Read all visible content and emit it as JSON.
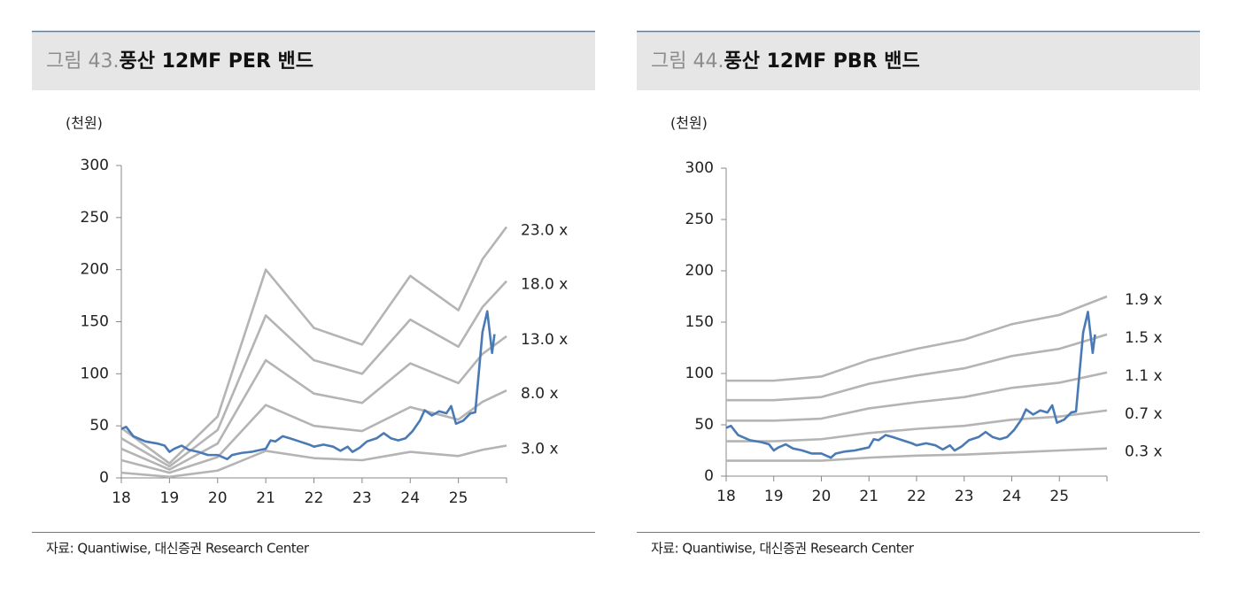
{
  "chart_data": [
    {
      "type": "line",
      "figure_label": "그림 43.",
      "title": "풍산 12MF PER 밴드",
      "unit": "(천원)",
      "xlim": [
        18,
        26
      ],
      "ylim": [
        0,
        300
      ],
      "xticks": [
        18,
        19,
        20,
        21,
        22,
        23,
        24,
        25
      ],
      "yticks": [
        0,
        50,
        100,
        150,
        200,
        250,
        300
      ],
      "band_color": "#b4b4b4",
      "price_color": "#4a7ab5",
      "bands": [
        {
          "name": "23.0 x",
          "x": [
            18,
            19,
            20,
            21,
            22,
            23,
            24,
            25,
            25.5,
            26
          ],
          "values": [
            48,
            14,
            59,
            200,
            144,
            128,
            194,
            161,
            210,
            241
          ]
        },
        {
          "name": "18.0 x",
          "x": [
            18,
            19,
            20,
            21,
            22,
            23,
            24,
            25,
            25.5,
            26
          ],
          "values": [
            38,
            11,
            46,
            156,
            113,
            100,
            152,
            126,
            164,
            189
          ]
        },
        {
          "name": "13.0 x",
          "x": [
            18,
            19,
            20,
            21,
            22,
            23,
            24,
            25,
            25.5,
            26
          ],
          "values": [
            28,
            8,
            33,
            113,
            81,
            72,
            110,
            91,
            119,
            136
          ]
        },
        {
          "name": "8.0 x",
          "x": [
            18,
            19,
            20,
            21,
            22,
            23,
            24,
            25,
            25.5,
            26
          ],
          "values": [
            17,
            5,
            20,
            70,
            50,
            45,
            68,
            56,
            73,
            84
          ]
        },
        {
          "name": "3.0 x",
          "x": [
            18,
            19,
            20,
            21,
            22,
            23,
            24,
            25,
            25.5,
            26
          ],
          "values": [
            5,
            1,
            7,
            26,
            19,
            17,
            25,
            21,
            27,
            31
          ]
        }
      ],
      "price": {
        "x": [
          18,
          18.1,
          18.25,
          18.5,
          18.75,
          18.9,
          19.0,
          19.1,
          19.25,
          19.4,
          19.6,
          19.8,
          20.0,
          20.1,
          20.2,
          20.3,
          20.5,
          20.7,
          20.9,
          21.0,
          21.1,
          21.2,
          21.35,
          21.5,
          21.7,
          21.9,
          22.0,
          22.2,
          22.4,
          22.55,
          22.7,
          22.8,
          22.95,
          23.1,
          23.3,
          23.45,
          23.6,
          23.75,
          23.9,
          24.05,
          24.2,
          24.3,
          24.45,
          24.6,
          24.75,
          24.85,
          24.95,
          25.1,
          25.25,
          25.35,
          25.5,
          25.6,
          25.7,
          25.75
        ],
        "values": [
          47,
          49,
          40,
          35,
          33,
          31,
          25,
          28,
          31,
          27,
          25,
          22,
          22,
          20,
          18,
          22,
          24,
          25,
          27,
          28,
          36,
          35,
          40,
          38,
          35,
          32,
          30,
          32,
          30,
          26,
          30,
          25,
          29,
          35,
          38,
          43,
          38,
          36,
          38,
          45,
          55,
          65,
          60,
          64,
          62,
          69,
          52,
          55,
          62,
          63,
          140,
          160,
          120,
          138
        ]
      },
      "source": "자료: Quantiwise, 대신증권 Research Center"
    },
    {
      "type": "line",
      "figure_label": "그림 44.",
      "title": "풍산 12MF PBR 밴드",
      "unit": "(천원)",
      "xlim": [
        18,
        26
      ],
      "ylim": [
        0,
        300
      ],
      "xticks": [
        18,
        19,
        20,
        21,
        22,
        23,
        24,
        25
      ],
      "yticks": [
        0,
        50,
        100,
        150,
        200,
        250,
        300
      ],
      "band_color": "#b4b4b4",
      "price_color": "#4a7ab5",
      "bands": [
        {
          "name": "1.9 x",
          "x": [
            18,
            19,
            20,
            21,
            22,
            23,
            24,
            25,
            26
          ],
          "values": [
            93,
            93,
            97,
            113,
            124,
            133,
            148,
            157,
            175
          ]
        },
        {
          "name": "1.5 x",
          "x": [
            18,
            19,
            20,
            21,
            22,
            23,
            24,
            25,
            26
          ],
          "values": [
            74,
            74,
            77,
            90,
            98,
            105,
            117,
            124,
            138
          ]
        },
        {
          "name": "1.1 x",
          "x": [
            18,
            19,
            20,
            21,
            22,
            23,
            24,
            25,
            26
          ],
          "values": [
            54,
            54,
            56,
            66,
            72,
            77,
            86,
            91,
            101
          ]
        },
        {
          "name": "0.7 x",
          "x": [
            18,
            19,
            20,
            21,
            22,
            23,
            24,
            25,
            26
          ],
          "values": [
            34,
            34,
            36,
            42,
            46,
            49,
            55,
            58,
            64
          ]
        },
        {
          "name": "0.3 x",
          "x": [
            18,
            19,
            20,
            21,
            22,
            23,
            24,
            25,
            26
          ],
          "values": [
            15,
            15,
            15,
            18,
            20,
            21,
            23,
            25,
            27
          ]
        }
      ],
      "price": {
        "x": [
          18,
          18.1,
          18.25,
          18.5,
          18.75,
          18.9,
          19.0,
          19.1,
          19.25,
          19.4,
          19.6,
          19.8,
          20.0,
          20.1,
          20.2,
          20.3,
          20.5,
          20.7,
          20.9,
          21.0,
          21.1,
          21.2,
          21.35,
          21.5,
          21.7,
          21.9,
          22.0,
          22.2,
          22.4,
          22.55,
          22.7,
          22.8,
          22.95,
          23.1,
          23.3,
          23.45,
          23.6,
          23.75,
          23.9,
          24.05,
          24.2,
          24.3,
          24.45,
          24.6,
          24.75,
          24.85,
          24.95,
          25.1,
          25.25,
          25.35,
          25.5,
          25.6,
          25.7,
          25.75
        ],
        "values": [
          47,
          49,
          40,
          35,
          33,
          31,
          25,
          28,
          31,
          27,
          25,
          22,
          22,
          20,
          18,
          22,
          24,
          25,
          27,
          28,
          36,
          35,
          40,
          38,
          35,
          32,
          30,
          32,
          30,
          26,
          30,
          25,
          29,
          35,
          38,
          43,
          38,
          36,
          38,
          45,
          55,
          65,
          60,
          64,
          62,
          69,
          52,
          55,
          62,
          63,
          140,
          160,
          120,
          138
        ]
      },
      "source": "자료: Quantiwise, 대신증권 Research Center"
    }
  ]
}
